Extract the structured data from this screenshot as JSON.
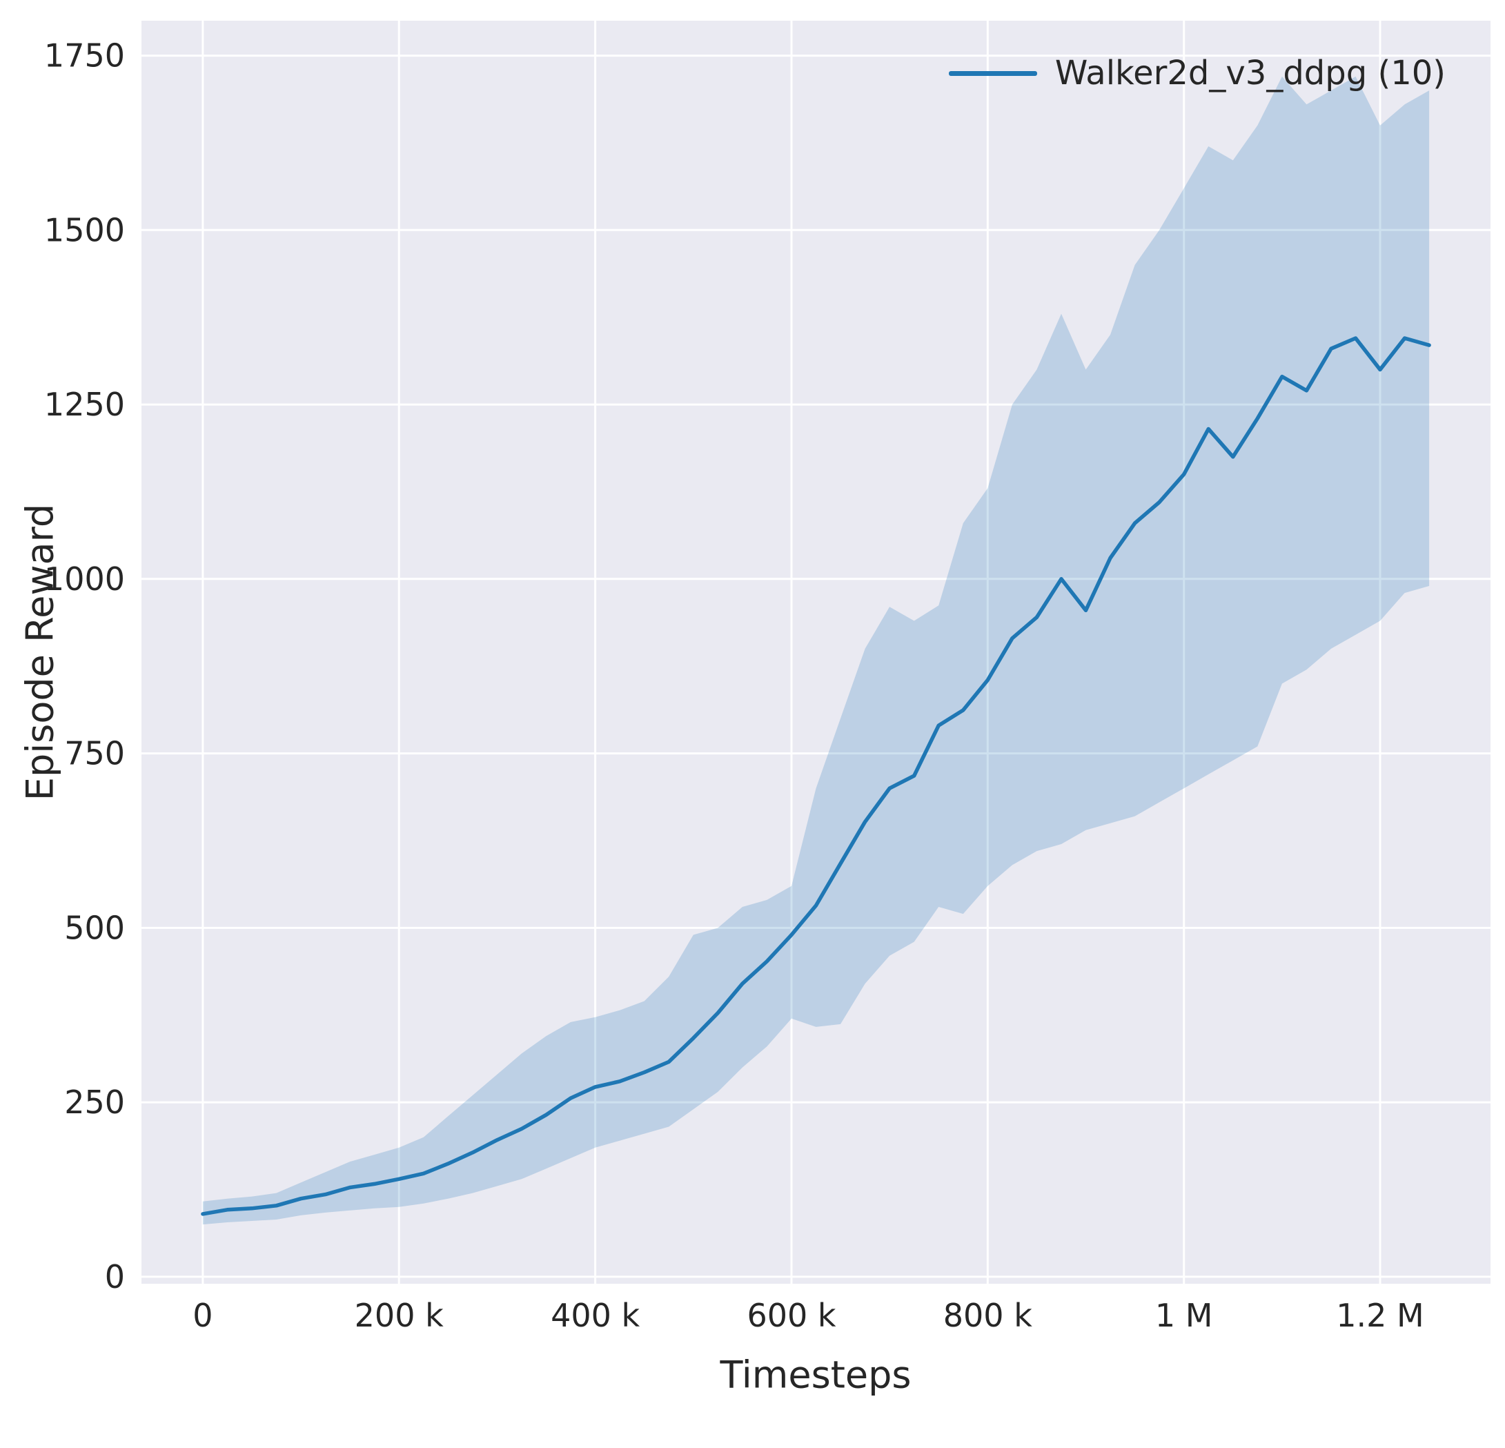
{
  "chart_data": {
    "type": "line",
    "title": "",
    "xlabel": "Timesteps",
    "ylabel": "Episode Reward",
    "legend_position": "upper right",
    "grid": true,
    "background": "#eaeaf2",
    "grid_color": "#ffffff",
    "xlim": [
      -62500,
      1312500
    ],
    "ylim": [
      -10,
      1800
    ],
    "xticks": {
      "values": [
        0,
        200000,
        400000,
        600000,
        800000,
        1000000,
        1200000
      ],
      "labels": [
        "0",
        "200 k",
        "400 k",
        "600 k",
        "800 k",
        "1 M",
        "1.2 M"
      ]
    },
    "yticks": {
      "values": [
        0,
        250,
        500,
        750,
        1000,
        1250,
        1500,
        1750
      ],
      "labels": [
        "0",
        "250",
        "500",
        "750",
        "1000",
        "1250",
        "1500",
        "1750"
      ]
    },
    "legend": [
      {
        "label": "Walker2d_v3_ddpg (10)",
        "color": "#1f77b4"
      }
    ],
    "series": [
      {
        "name": "Walker2d_v3_ddpg (10)",
        "color": "#1f77b4",
        "band_opacity": 0.22,
        "x": [
          0,
          25000,
          50000,
          75000,
          100000,
          125000,
          150000,
          175000,
          200000,
          225000,
          250000,
          275000,
          300000,
          325000,
          350000,
          375000,
          400000,
          425000,
          450000,
          475000,
          500000,
          525000,
          550000,
          575000,
          600000,
          625000,
          650000,
          675000,
          700000,
          725000,
          750000,
          775000,
          800000,
          825000,
          850000,
          875000,
          900000,
          925000,
          950000,
          975000,
          1000000,
          1025000,
          1050000,
          1075000,
          1100000,
          1125000,
          1150000,
          1175000,
          1200000,
          1225000,
          1250000
        ],
        "mean": [
          90,
          96,
          98,
          102,
          112,
          118,
          128,
          133,
          140,
          148,
          162,
          178,
          196,
          212,
          232,
          256,
          272,
          280,
          293,
          308,
          342,
          378,
          420,
          452,
          490,
          532,
          592,
          652,
          700,
          718,
          790,
          812,
          855,
          915,
          945,
          1000,
          955,
          1030,
          1080,
          1110,
          1150,
          1215,
          1175,
          1230,
          1290,
          1270,
          1330,
          1345,
          1300,
          1345,
          1335
        ],
        "lower": [
          75,
          78,
          80,
          82,
          88,
          92,
          95,
          98,
          100,
          105,
          112,
          120,
          130,
          140,
          155,
          170,
          185,
          195,
          205,
          215,
          240,
          265,
          300,
          330,
          370,
          358,
          362,
          420,
          460,
          480,
          530,
          520,
          560,
          590,
          610,
          620,
          640,
          650,
          660,
          680,
          700,
          720,
          740,
          760,
          850,
          870,
          900,
          920,
          940,
          980,
          990
        ],
        "upper": [
          108,
          112,
          115,
          120,
          135,
          150,
          165,
          175,
          185,
          200,
          230,
          260,
          290,
          320,
          345,
          365,
          372,
          382,
          395,
          430,
          490,
          500,
          530,
          540,
          560,
          700,
          800,
          900,
          960,
          940,
          962,
          1080,
          1130,
          1250,
          1300,
          1380,
          1300,
          1350,
          1450,
          1500,
          1560,
          1620,
          1600,
          1650,
          1720,
          1680,
          1700,
          1720,
          1650,
          1680,
          1700
        ]
      }
    ]
  }
}
